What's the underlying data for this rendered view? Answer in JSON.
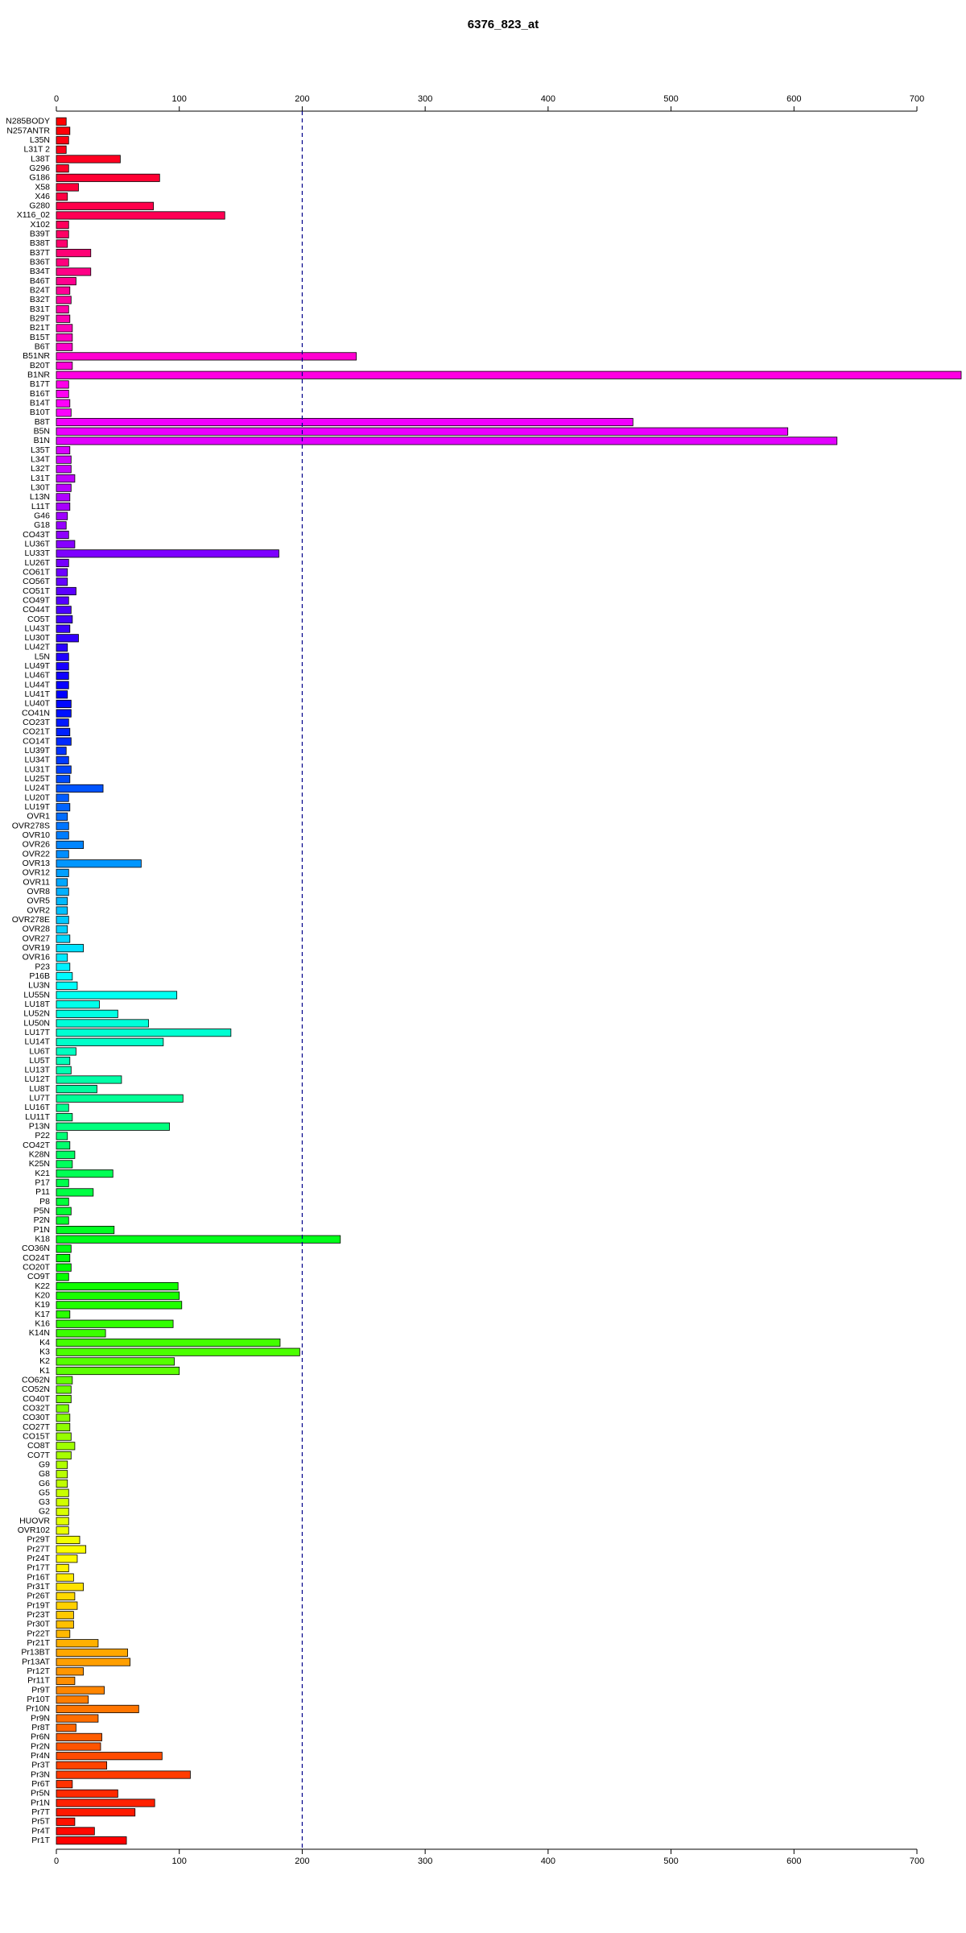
{
  "chart_data": {
    "type": "barh",
    "title": "6376_823_at",
    "categories": [
      "N285BODY",
      "N257ANTR",
      "L35N",
      "L31T 2",
      "L38T",
      "G296",
      "G186",
      "X58",
      "X46",
      "G280",
      "X116_02",
      "X102",
      "B39T",
      "B38T",
      "B37T",
      "B36T",
      "B34T",
      "B46T",
      "B24T",
      "B32T",
      "B31T",
      "B29T",
      "B21T",
      "B15T",
      "B6T",
      "B51NR",
      "B20T",
      "B1NR",
      "B17T",
      "B16T",
      "B14T",
      "B10T",
      "B8T",
      "B5N",
      "B1N",
      "L35T",
      "L34T",
      "L32T",
      "L31T",
      "L30T",
      "L13N",
      "L11T",
      "G46",
      "G18",
      "CO43T",
      "LU36T",
      "LU33T",
      "LU26T",
      "CO61T",
      "CO56T",
      "CO51T",
      "CO49T",
      "CO44T",
      "CO5T",
      "LU43T",
      "LU30T",
      "LU42T",
      "L5N",
      "LU49T",
      "LU46T",
      "LU44T",
      "LU41T",
      "LU40T",
      "CO41N",
      "CO23T",
      "CO21T",
      "CO14T",
      "LU39T",
      "LU34T",
      "LU31T",
      "LU25T",
      "LU24T",
      "LU20T",
      "LU19T",
      "OVR1",
      "OVR278S",
      "OVR10",
      "OVR26",
      "OVR22",
      "OVR13",
      "OVR12",
      "OVR11",
      "OVR8",
      "OVR5",
      "OVR2",
      "OVR278E",
      "OVR28",
      "OVR27",
      "OVR19",
      "OVR16",
      "P23",
      "P16B",
      "LU3N",
      "LU55N",
      "LU18T",
      "LU52N",
      "LU50N",
      "LU17T",
      "LU14T",
      "LU6T",
      "LU5T",
      "LU13T",
      "LU12T",
      "LU8T",
      "LU7T",
      "LU16T",
      "LU11T",
      "P13N",
      "P22",
      "CO42T",
      "K28N",
      "K25N",
      "K21",
      "P17",
      "P11",
      "P8",
      "P5N",
      "P2N",
      "P1N",
      "K18",
      "CO36N",
      "CO24T",
      "CO20T",
      "CO9T",
      "K22",
      "K20",
      "K19",
      "K17",
      "K16",
      "K14N",
      "K4",
      "K3",
      "K2",
      "K1",
      "CO62N",
      "CO52N",
      "CO40T",
      "CO32T",
      "CO30T",
      "CO27T",
      "CO15T",
      "CO8T",
      "CO7T",
      "G9",
      "G8",
      "G6",
      "G5",
      "G3",
      "G2",
      "HUOVR",
      "OVR102",
      "Pr29T",
      "Pr27T",
      "Pr24T",
      "Pr17T",
      "Pr16T",
      "Pr31T",
      "Pr26T",
      "Pr19T",
      "Pr23T",
      "Pr30T",
      "Pr22T",
      "Pr21T",
      "Pr13BT",
      "Pr13AT",
      "Pr12T",
      "Pr11T",
      "Pr9T",
      "Pr10T",
      "Pr10N",
      "Pr9N",
      "Pr8T",
      "Pr6N",
      "Pr2N",
      "Pr4N",
      "Pr3T",
      "Pr3N",
      "Pr6T",
      "Pr5N",
      "Pr1N",
      "Pr7T",
      "Pr5T",
      "Pr4T",
      "Pr1T"
    ],
    "values": [
      8,
      11,
      10,
      8,
      52,
      10,
      84,
      18,
      9,
      79,
      137,
      10,
      10,
      9,
      28,
      10,
      28,
      16,
      11,
      12,
      10,
      11,
      13,
      13,
      13,
      244,
      13,
      736,
      10,
      10,
      11,
      12,
      469,
      595,
      635,
      11,
      12,
      12,
      15,
      12,
      11,
      11,
      9,
      8,
      10,
      15,
      181,
      10,
      9,
      9,
      16,
      10,
      12,
      13,
      11,
      18,
      9,
      10,
      10,
      10,
      10,
      9,
      12,
      12,
      10,
      11,
      12,
      8,
      10,
      12,
      11,
      38,
      10,
      11,
      9,
      10,
      10,
      22,
      10,
      69,
      10,
      9,
      10,
      9,
      9,
      10,
      9,
      11,
      22,
      9,
      11,
      13,
      17,
      98,
      35,
      50,
      75,
      142,
      87,
      16,
      11,
      12,
      53,
      33,
      103,
      10,
      13,
      92,
      9,
      11,
      15,
      13,
      46,
      10,
      30,
      10,
      12,
      10,
      47,
      231,
      12,
      11,
      12,
      10,
      99,
      100,
      102,
      11,
      95,
      40,
      182,
      198,
      96,
      100,
      13,
      12,
      12,
      10,
      11,
      11,
      12,
      15,
      12,
      9,
      9,
      9,
      10,
      10,
      10,
      10,
      10,
      19,
      24,
      17,
      10,
      14,
      22,
      15,
      17,
      14,
      14,
      11,
      34,
      58,
      60,
      22,
      15,
      39,
      26,
      67,
      34,
      16,
      37,
      36,
      86,
      41,
      109,
      13,
      50,
      80,
      64,
      15,
      31,
      57
    ],
    "color_gradient": [
      "#ff0000",
      "#ff00ff",
      "#0000ff",
      "#00ffff",
      "#00ff00",
      "#ffff00",
      "#ff0000"
    ],
    "xlim": [
      0,
      736
    ],
    "xticks": [
      0,
      100,
      200,
      300,
      400,
      500,
      600,
      700
    ],
    "reference_line": 200,
    "reference_color": "#00008b"
  }
}
